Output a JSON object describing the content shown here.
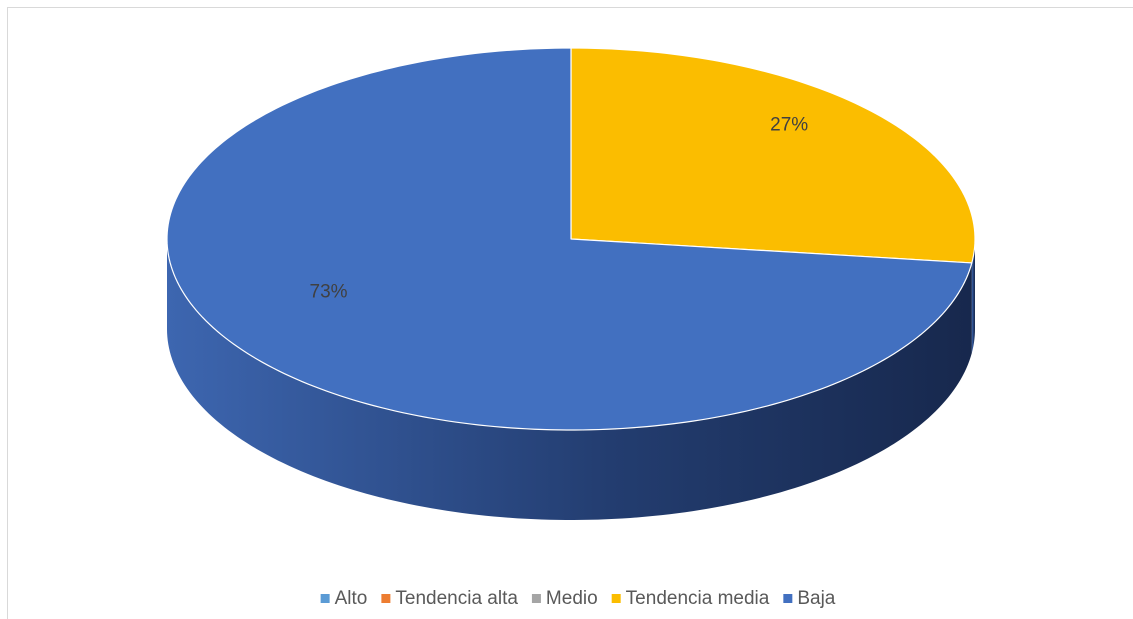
{
  "chart_data": {
    "type": "pie3d",
    "categories": [
      "Alto",
      "Tendencia alta",
      "Medio",
      "Tendencia media",
      "Baja"
    ],
    "values": [
      0,
      0,
      0,
      27,
      73
    ],
    "value_labels": [
      null,
      null,
      null,
      "27%",
      "73%"
    ],
    "colors": [
      "#5b9bd5",
      "#ed7d31",
      "#a5a5a5",
      "#fbbd00",
      "#4270c0"
    ],
    "legend": "bottom"
  }
}
